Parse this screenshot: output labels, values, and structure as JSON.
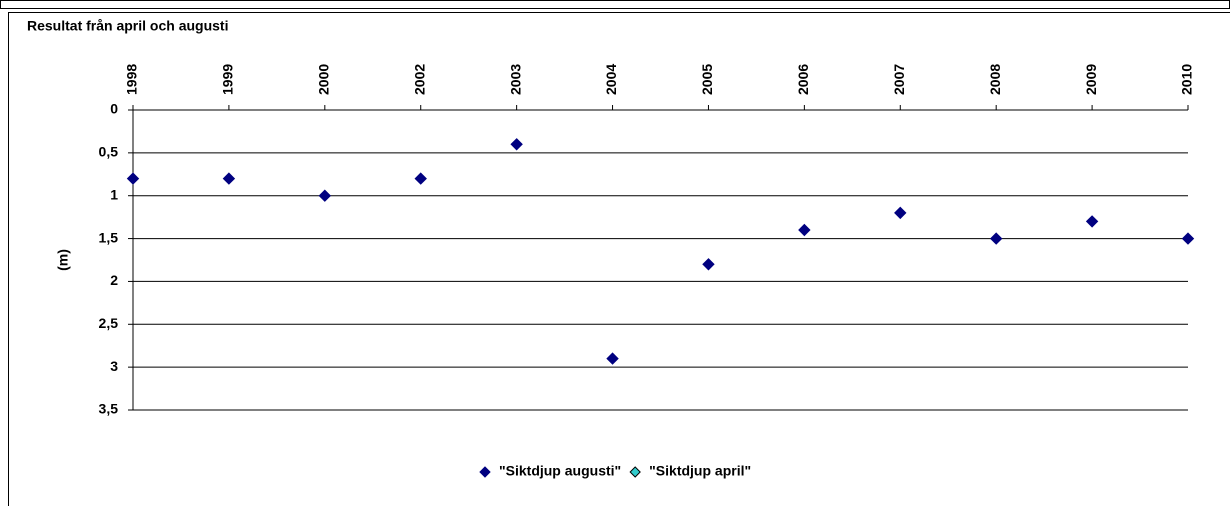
{
  "chart_data": {
    "type": "scatter",
    "title": "Resultat från april och augusti",
    "y_label": "(m)",
    "categories": [
      "1998",
      "1999",
      "2000",
      "2002",
      "2003",
      "2004",
      "2005",
      "2006",
      "2007",
      "2008",
      "2009",
      "2010"
    ],
    "series": [
      {
        "name": "\"Siktdjup augusti\"",
        "color": "#000080",
        "values": [
          0.8,
          0.8,
          1.0,
          0.8,
          0.4,
          2.9,
          1.8,
          1.4,
          1.2,
          1.5,
          1.3,
          1.5
        ]
      },
      {
        "name": "\"Siktdjup april\"",
        "color": "#33cccc",
        "values": [
          null,
          null,
          null,
          null,
          null,
          null,
          null,
          null,
          null,
          null,
          null,
          null
        ]
      }
    ],
    "ylim": [
      0,
      3.5
    ],
    "y_inverted": true,
    "yticks": [
      {
        "value": 0,
        "label": "0"
      },
      {
        "value": 0.5,
        "label": "0,5"
      },
      {
        "value": 1,
        "label": "1"
      },
      {
        "value": 1.5,
        "label": "1,5"
      },
      {
        "value": 2,
        "label": "2"
      },
      {
        "value": 2.5,
        "label": "2,5"
      },
      {
        "value": 3,
        "label": "3"
      },
      {
        "value": 3.5,
        "label": "3,5"
      }
    ],
    "grid": true,
    "legend": "bottom"
  }
}
